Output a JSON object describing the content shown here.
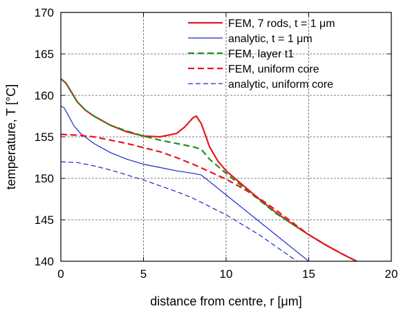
{
  "chart_data": {
    "type": "line",
    "xlabel": "distance from centre, r [μm]",
    "ylabel": "temperature, T [°C]",
    "xlim": [
      0,
      20
    ],
    "ylim": [
      140,
      170
    ],
    "xticks": [
      0,
      5,
      10,
      15,
      20
    ],
    "yticks": [
      140,
      145,
      150,
      155,
      160,
      165,
      170
    ],
    "grid": true,
    "legend_position": "top-right",
    "series": [
      {
        "name": "FEM, 7 rods, t = 1 μm",
        "color": "#e8141c",
        "style": "solid",
        "width": "thick",
        "x": [
          0,
          0.3,
          0.7,
          1,
          1.5,
          2,
          3,
          4,
          5,
          6,
          7,
          7.5,
          8,
          8.2,
          8.5,
          9,
          9.5,
          10,
          11,
          12,
          13,
          14,
          15,
          16,
          17,
          18,
          18.5
        ],
        "y": [
          162,
          161.5,
          160.2,
          159.2,
          158.2,
          157.5,
          156.4,
          155.6,
          155.1,
          155.0,
          155.4,
          156.2,
          157.3,
          157.5,
          156.6,
          153.8,
          152.1,
          150.9,
          149.2,
          147.5,
          145.9,
          144.5,
          143.2,
          142.0,
          140.9,
          139.9,
          139.3
        ]
      },
      {
        "name": "analytic, t = 1 μm",
        "color": "#1a28c8",
        "style": "solid",
        "width": "thin",
        "x": [
          0,
          0.2,
          0.5,
          0.8,
          1.2,
          2,
          3,
          4,
          5,
          6,
          7,
          8,
          8.5,
          9,
          10,
          11,
          12,
          13,
          14,
          15
        ],
        "y": [
          158.7,
          158.5,
          157.4,
          156.3,
          155.4,
          154.2,
          153.1,
          152.3,
          151.7,
          151.3,
          150.9,
          150.6,
          150.4,
          149.6,
          148.0,
          146.4,
          144.8,
          143.2,
          141.6,
          140.0
        ]
      },
      {
        "name": "FEM, layer t1",
        "color": "#1e8c1e",
        "style": "dashed",
        "width": "thick",
        "x": [
          0,
          0.3,
          0.7,
          1,
          1.5,
          2,
          3,
          4,
          5,
          6,
          7,
          8,
          8.5,
          9,
          10,
          11,
          12,
          13,
          14,
          15,
          16,
          17,
          18,
          18.5
        ],
        "y": [
          162,
          161.5,
          160.2,
          159.2,
          158.2,
          157.5,
          156.4,
          155.7,
          155.1,
          154.6,
          154.2,
          153.8,
          153.5,
          152.3,
          150.6,
          149.0,
          147.4,
          145.8,
          144.5,
          143.2,
          142.0,
          140.9,
          139.9,
          139.3
        ]
      },
      {
        "name": "FEM, uniform core",
        "color": "#e8141c",
        "style": "dashed",
        "width": "thick",
        "x": [
          0,
          1,
          2,
          3,
          4,
          5,
          6,
          7,
          8,
          9,
          10,
          11,
          12,
          13,
          14,
          15,
          16,
          17,
          18,
          18.5
        ],
        "y": [
          155.3,
          155.2,
          155.0,
          154.6,
          154.2,
          153.7,
          153.2,
          152.5,
          151.7,
          150.8,
          149.9,
          148.8,
          147.6,
          146.2,
          144.7,
          143.2,
          142.0,
          140.9,
          139.9,
          139.3
        ]
      },
      {
        "name": "analytic, uniform core",
        "color": "#1a28c8",
        "style": "dashed",
        "width": "thin",
        "x": [
          0,
          1,
          2,
          3,
          4,
          5,
          6,
          7,
          8,
          9,
          10,
          11,
          12,
          13,
          14,
          15
        ],
        "y": [
          152.0,
          151.9,
          151.5,
          151.0,
          150.4,
          149.8,
          149.1,
          148.4,
          147.6,
          146.6,
          145.6,
          144.4,
          143.2,
          141.8,
          140.4,
          139.0
        ]
      }
    ]
  }
}
